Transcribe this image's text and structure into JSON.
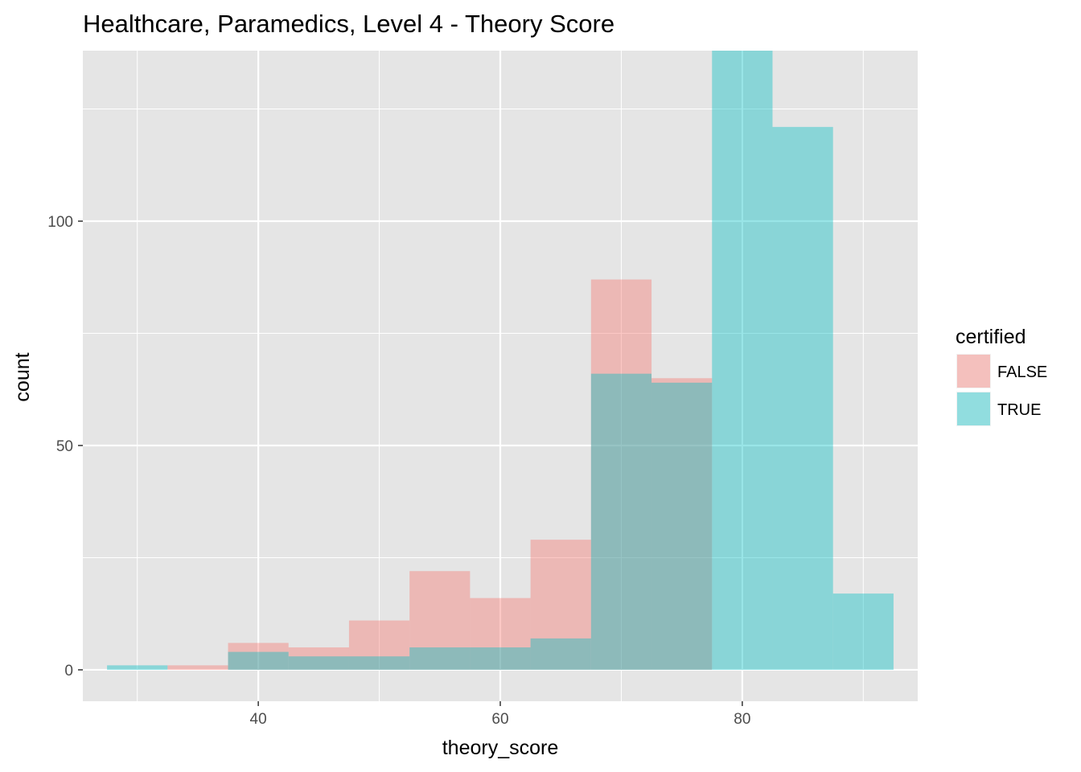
{
  "chart_data": {
    "type": "bar",
    "subtype": "overlaid-histogram",
    "title": "Healthcare, Paramedics, Level 4 - Theory Score",
    "xlabel": "theory_score",
    "ylabel": "count",
    "xlim": [
      25.5,
      94.5
    ],
    "ylim": [
      -7,
      138
    ],
    "x_ticks": [
      40,
      60,
      80
    ],
    "y_ticks": [
      0,
      50,
      100
    ],
    "x_minor_ticks": [
      30,
      50,
      70,
      90
    ],
    "y_minor_ticks": [
      25,
      75,
      125
    ],
    "grid": true,
    "bin_width": 5,
    "bin_centers": [
      30,
      35,
      40,
      45,
      50,
      55,
      60,
      65,
      70,
      75,
      80,
      85,
      90
    ],
    "legend": {
      "title": "certified",
      "position": "right"
    },
    "series": [
      {
        "name": "FALSE",
        "color": "#F8766D",
        "values": [
          0,
          1,
          6,
          5,
          11,
          22,
          16,
          29,
          87,
          65,
          0,
          0,
          0
        ]
      },
      {
        "name": "TRUE",
        "color": "#00BFC4",
        "values": [
          1,
          0,
          4,
          3,
          3,
          5,
          5,
          7,
          66,
          64,
          138,
          121,
          17
        ]
      }
    ],
    "colors": {
      "panel_background": "#E5E5E5",
      "grid": "#FFFFFF",
      "tick": "#333333",
      "tick_label": "#4D4D4D"
    }
  }
}
